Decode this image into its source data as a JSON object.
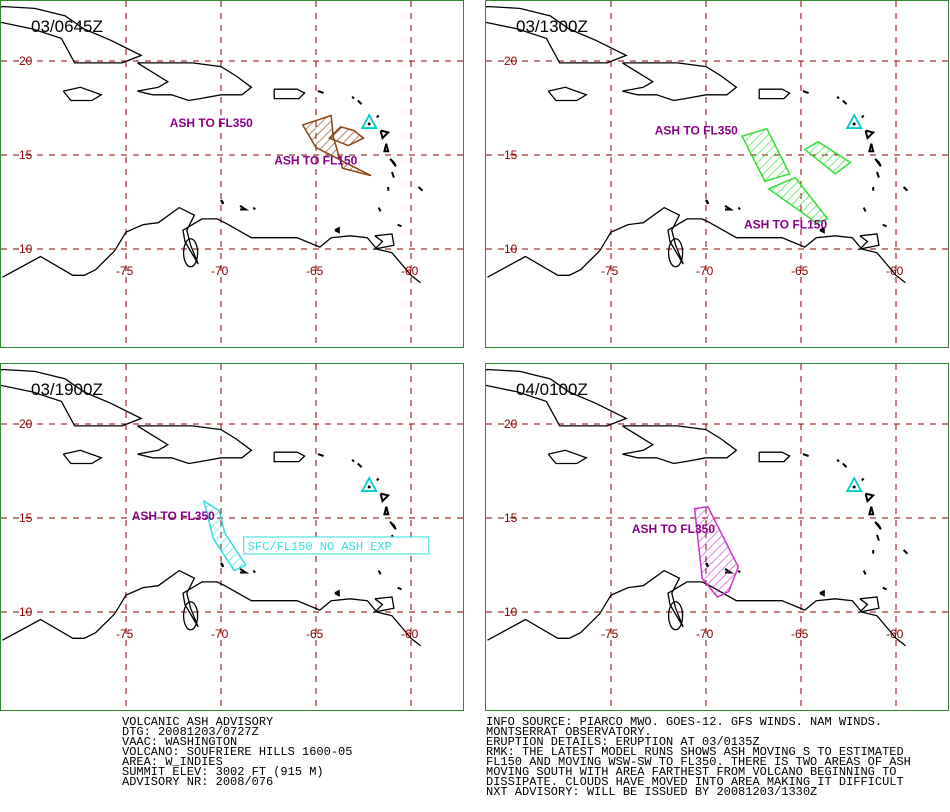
{
  "panels": [
    {
      "time": "03/0645Z",
      "color": "#8b4513",
      "labels": [
        "ASH TO FL350",
        "ASH TO FL150"
      ],
      "extra_box": ""
    },
    {
      "time": "03/1300Z",
      "color": "#33dd33",
      "labels": [
        "ASH TO FL350",
        "ASH TO FL150"
      ],
      "extra_box": ""
    },
    {
      "time": "03/1900Z",
      "color": "#33dddd",
      "labels": [
        "ASH TO FL350"
      ],
      "extra_box": "SFC/FL150 NO ASH EXP"
    },
    {
      "time": "04/0100Z",
      "color": "#cc33cc",
      "labels": [
        "ASH TO FL350"
      ],
      "extra_box": ""
    }
  ],
  "map": {
    "lat_labels": [
      "20",
      "15",
      "10"
    ],
    "lon_labels": [
      "-75",
      "-70",
      "-65",
      "-60"
    ],
    "grid_color": "#8b0000",
    "volcano_color": "#00cccc"
  },
  "advisory_left": [
    "VOLCANIC ASH ADVISORY",
    "DTG: 20081203/0727Z",
    "VAAC: WASHINGTON",
    "VOLCANO: SOUFRIERE HILLS 1600-05",
    "AREA: W_INDIES",
    "SUMMIT ELEV: 3002 FT (915 M)",
    "ADVISORY NR: 2008/076"
  ],
  "advisory_right": [
    "INFO SOURCE: PIARCO MWO. GOES-12. GFS WINDS. NAM WINDS.",
    "MONTSERRAT OBSERVATORY.",
    "ERUPTION DETAILS: ERUPTION AT 03/0135Z",
    "RMK: THE LATEST MODEL RUNS SHOWS ASH MOVING S TO ESTIMATED",
    "FL150 AND MOVING WSW-SW TO FL350. THERE IS TWO AREAS OF ASH",
    "MOVING SOUTH WITH AREA FARTHEST FROM VOLCANO BEGINNING TO",
    "DISSIPATE. CLOUDS HAVE MOVED INTO AREA MAKING IT DIFFICULT",
    "NXT ADVISORY: WILL BE ISSUED BY 20081203/1330Z"
  ]
}
